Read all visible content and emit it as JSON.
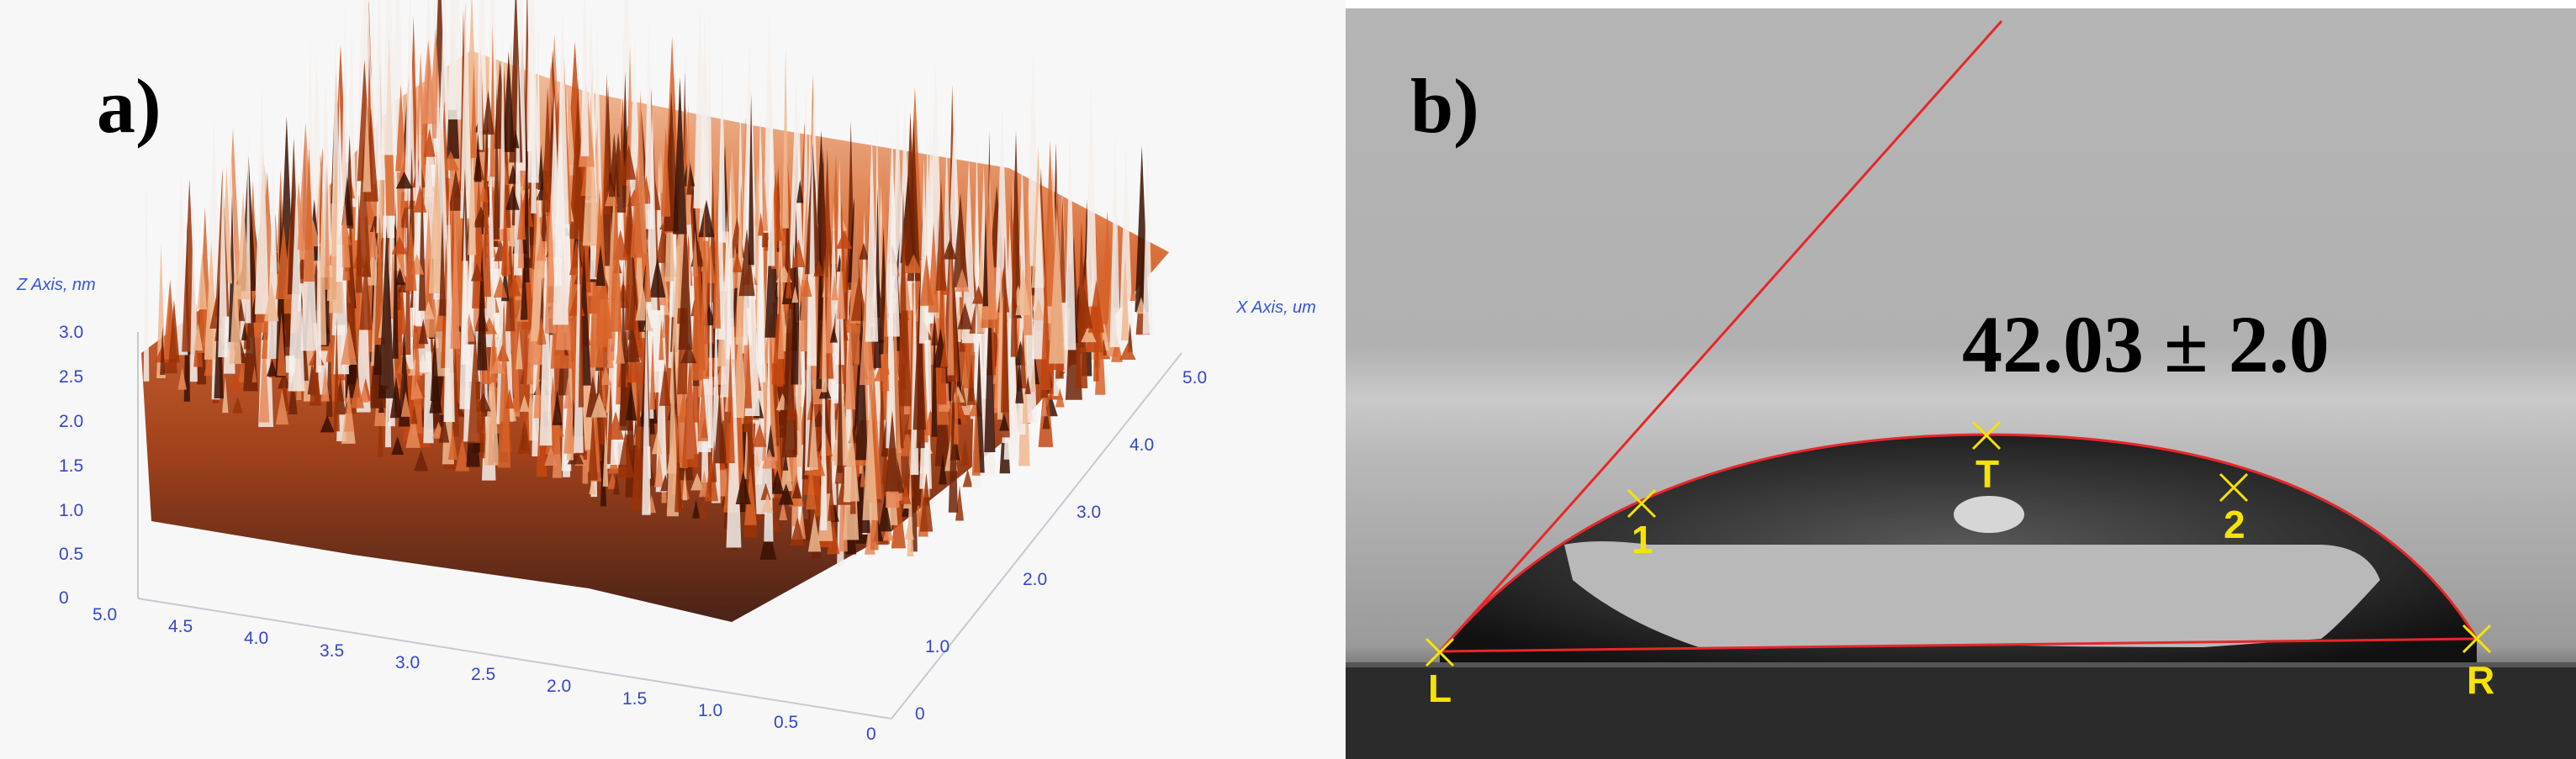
{
  "panel_a": {
    "label": "a)",
    "z_axis_title": "Z Axis, nm",
    "x_axis_title": "X Axis, um",
    "z_ticks": [
      "3.0",
      "2.5",
      "2.0",
      "1.5",
      "1.0",
      "0.5",
      "0"
    ],
    "x_ticks": [
      "5.0",
      "4.0",
      "3.0",
      "2.0",
      "1.0",
      "0"
    ],
    "y_ticks": [
      "5.0",
      "4.5",
      "4.0",
      "3.5",
      "3.0",
      "2.5",
      "2.0",
      "1.5",
      "1.0",
      "0.5",
      "0"
    ],
    "colors": {
      "surface_dark": "#3a1004",
      "surface_mid": "#c64812",
      "surface_light": "#f0b890",
      "peak": "#f4f0ec",
      "axis_text": "#3347c8"
    }
  },
  "panel_b": {
    "label": "b)",
    "measurement": "42.03 ± 2.0",
    "point_labels": [
      "L",
      "1",
      "T",
      "2",
      "R"
    ],
    "colors": {
      "fit_line": "#e8262a",
      "marker": "#f5e400",
      "background": "#b4b4b4"
    }
  }
}
